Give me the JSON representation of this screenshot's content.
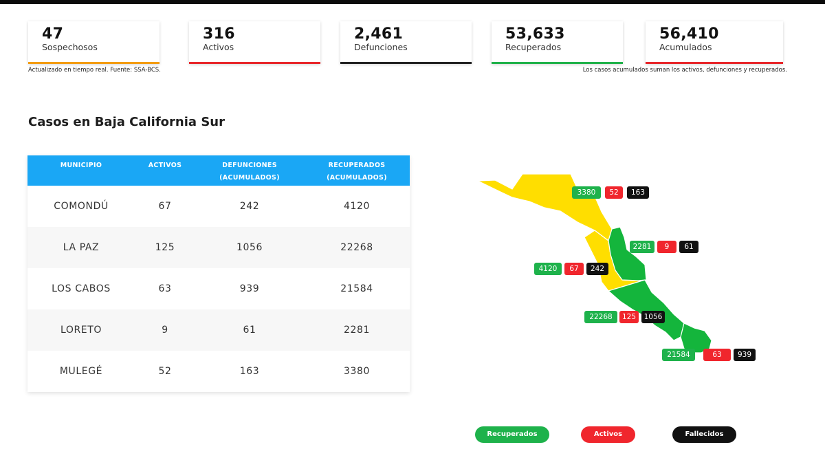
{
  "stats": [
    {
      "value": "47",
      "label": "Sospechosos",
      "color": "#f39c12"
    },
    {
      "value": "316",
      "label": "Activos",
      "color": "#e8272b"
    },
    {
      "value": "2,461",
      "label": "Defunciones",
      "color": "#222222"
    },
    {
      "value": "53,633",
      "label": "Recuperados",
      "color": "#20b24a"
    },
    {
      "value": "56,410",
      "label": "Acumulados",
      "color": "#e8272b"
    }
  ],
  "notes": {
    "left": "Actualizado en tiempo real. Fuente: SSA-BCS.",
    "right": "Los casos acumulados suman los activos, defunciones y recuperados."
  },
  "heading": "Casos en Baja California Sur",
  "table": {
    "headers": [
      {
        "line1": "MUNICIPIO",
        "line2": ""
      },
      {
        "line1": "ACTIVOS",
        "line2": ""
      },
      {
        "line1": "DEFUNCIONES",
        "line2": "(ACUMULADOS)"
      },
      {
        "line1": "RECUPERADOS",
        "line2": "(ACUMULADOS)"
      }
    ],
    "rows": [
      {
        "municipio": "COMONDÚ",
        "activos": "67",
        "defunciones": "242",
        "recuperados": "4120"
      },
      {
        "municipio": "LA PAZ",
        "activos": "125",
        "defunciones": "1056",
        "recuperados": "22268"
      },
      {
        "municipio": "LOS CABOS",
        "activos": "63",
        "defunciones": "939",
        "recuperados": "21584"
      },
      {
        "municipio": "LORETO",
        "activos": "9",
        "defunciones": "61",
        "recuperados": "2281"
      },
      {
        "municipio": "MULEGÉ",
        "activos": "52",
        "defunciones": "163",
        "recuperados": "3380"
      }
    ]
  },
  "map": {
    "colors": {
      "yellow": "#ffde00",
      "green": "#14b53c",
      "red": "#f0262d",
      "black": "#111111"
    },
    "regions": [
      {
        "name": "Mulegé",
        "color": "yellow"
      },
      {
        "name": "Comondú",
        "color": "yellow"
      },
      {
        "name": "Loreto",
        "color": "green"
      },
      {
        "name": "La Paz",
        "color": "green"
      },
      {
        "name": "Los Cabos",
        "color": "green"
      }
    ],
    "markers": [
      {
        "region": "Mulegé",
        "recuperados": "3380",
        "activos": "52",
        "fallecidos": "163"
      },
      {
        "region": "Loreto",
        "recuperados": "2281",
        "activos": "9",
        "fallecidos": "61"
      },
      {
        "region": "Comondú",
        "recuperados": "4120",
        "activos": "67",
        "fallecidos": "242"
      },
      {
        "region": "La Paz",
        "recuperados": "22268",
        "activos": "125",
        "fallecidos": "1056"
      },
      {
        "region": "Los Cabos",
        "recuperados": "21584",
        "activos": "63",
        "fallecidos": "939"
      }
    ]
  },
  "legend": [
    {
      "label": "Recuperados",
      "color": "#1eb24b"
    },
    {
      "label": "Activos",
      "color": "#f0262d"
    },
    {
      "label": "Fallecidos",
      "color": "#111111"
    }
  ]
}
